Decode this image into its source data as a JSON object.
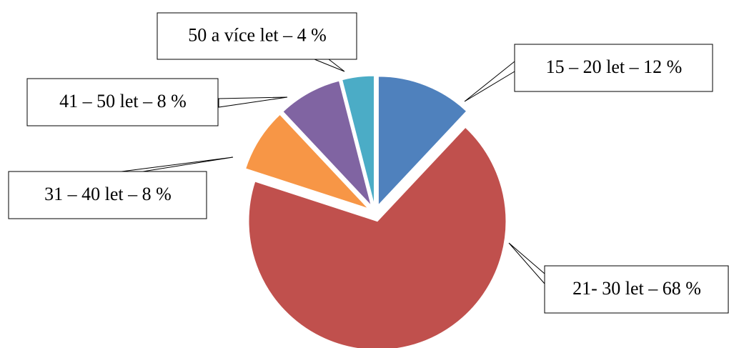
{
  "chart_data": {
    "type": "pie",
    "categories": [
      "15 – 20 let – 12 %",
      "21- 30 let – 68 %",
      "31 – 40 let – 8 %",
      "41 – 50 let – 8 %",
      "50 a více let – 4 %"
    ],
    "values": [
      12,
      68,
      8,
      8,
      4
    ],
    "colors": [
      "#4f81bd",
      "#c0504d",
      "#f79646",
      "#8064a2",
      "#4bacc6"
    ]
  }
}
